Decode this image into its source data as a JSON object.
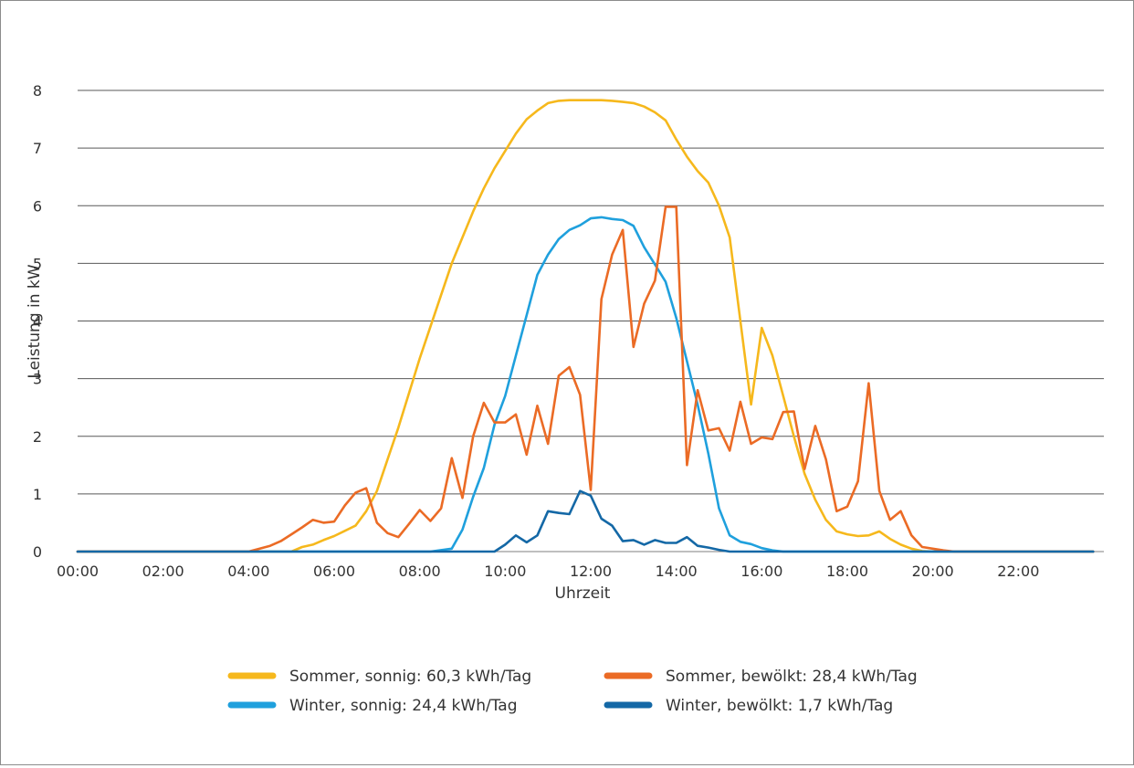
{
  "chart_data": {
    "type": "line",
    "title": "",
    "xlabel": "Uhrzeit",
    "ylabel": "Leistung in kW",
    "ylim": [
      0,
      8
    ],
    "yticks": [
      "0",
      "1",
      "2",
      "3",
      "4",
      "5",
      "6",
      "7",
      "8"
    ],
    "xticks": [
      "00:00",
      "02:00",
      "04:00",
      "06:00",
      "08:00",
      "10:00",
      "12:00",
      "14:00",
      "16:00",
      "18:00",
      "20:00",
      "22:00"
    ],
    "grid": "horizontal",
    "legend_position": "bottom",
    "series": [
      {
        "name": "Sommer, sonnig: 60,3 kWh/Tag",
        "color": "#f6b81c",
        "points": [
          [
            0,
            0
          ],
          [
            5,
            0
          ],
          [
            5.25,
            0.08
          ],
          [
            5.5,
            0.12
          ],
          [
            5.75,
            0.2
          ],
          [
            6,
            0.27
          ],
          [
            6.25,
            0.36
          ],
          [
            6.5,
            0.45
          ],
          [
            6.75,
            0.7
          ],
          [
            7,
            1.05
          ],
          [
            7.25,
            1.6
          ],
          [
            7.5,
            2.15
          ],
          [
            7.75,
            2.75
          ],
          [
            8,
            3.35
          ],
          [
            8.25,
            3.9
          ],
          [
            8.5,
            4.45
          ],
          [
            8.75,
            5.0
          ],
          [
            9,
            5.45
          ],
          [
            9.25,
            5.9
          ],
          [
            9.5,
            6.3
          ],
          [
            9.75,
            6.65
          ],
          [
            10,
            6.95
          ],
          [
            10.25,
            7.25
          ],
          [
            10.5,
            7.5
          ],
          [
            10.75,
            7.65
          ],
          [
            11,
            7.78
          ],
          [
            11.25,
            7.82
          ],
          [
            11.5,
            7.83
          ],
          [
            12,
            7.83
          ],
          [
            12.25,
            7.83
          ],
          [
            12.5,
            7.82
          ],
          [
            12.75,
            7.8
          ],
          [
            13,
            7.78
          ],
          [
            13.25,
            7.72
          ],
          [
            13.5,
            7.62
          ],
          [
            13.75,
            7.48
          ],
          [
            14,
            7.15
          ],
          [
            14.25,
            6.85
          ],
          [
            14.5,
            6.6
          ],
          [
            14.75,
            6.4
          ],
          [
            15,
            6.0
          ],
          [
            15.25,
            5.45
          ],
          [
            15.5,
            4.0
          ],
          [
            15.75,
            2.55
          ],
          [
            16,
            3.88
          ],
          [
            16.25,
            3.4
          ],
          [
            16.5,
            2.7
          ],
          [
            16.75,
            2.0
          ],
          [
            17,
            1.35
          ],
          [
            17.25,
            0.9
          ],
          [
            17.5,
            0.55
          ],
          [
            17.75,
            0.35
          ],
          [
            18,
            0.3
          ],
          [
            18.25,
            0.27
          ],
          [
            18.5,
            0.28
          ],
          [
            18.75,
            0.35
          ],
          [
            19,
            0.22
          ],
          [
            19.25,
            0.12
          ],
          [
            19.5,
            0.05
          ],
          [
            19.75,
            0.01
          ],
          [
            20,
            0
          ],
          [
            23.75,
            0
          ]
        ]
      },
      {
        "name": "Sommer, bewölkt: 28,4 kWh/Tag",
        "color": "#eb6b25",
        "points": [
          [
            0,
            0
          ],
          [
            4,
            0
          ],
          [
            4.5,
            0.1
          ],
          [
            4.75,
            0.18
          ],
          [
            5,
            0.3
          ],
          [
            5.25,
            0.42
          ],
          [
            5.5,
            0.55
          ],
          [
            5.75,
            0.5
          ],
          [
            6,
            0.52
          ],
          [
            6.25,
            0.8
          ],
          [
            6.5,
            1.02
          ],
          [
            6.75,
            1.1
          ],
          [
            7,
            0.5
          ],
          [
            7.25,
            0.32
          ],
          [
            7.5,
            0.25
          ],
          [
            7.75,
            0.48
          ],
          [
            8,
            0.72
          ],
          [
            8.25,
            0.53
          ],
          [
            8.5,
            0.75
          ],
          [
            8.75,
            1.62
          ],
          [
            9,
            0.93
          ],
          [
            9.25,
            2.0
          ],
          [
            9.5,
            2.58
          ],
          [
            9.75,
            2.24
          ],
          [
            10,
            2.24
          ],
          [
            10.25,
            2.38
          ],
          [
            10.5,
            1.68
          ],
          [
            10.75,
            2.53
          ],
          [
            11,
            1.87
          ],
          [
            11.25,
            3.05
          ],
          [
            11.5,
            3.2
          ],
          [
            11.75,
            2.72
          ],
          [
            12,
            1.07
          ],
          [
            12.25,
            4.38
          ],
          [
            12.5,
            5.15
          ],
          [
            12.75,
            5.58
          ],
          [
            13,
            3.55
          ],
          [
            13.25,
            4.3
          ],
          [
            13.5,
            4.7
          ],
          [
            13.75,
            5.98
          ],
          [
            14,
            5.98
          ],
          [
            14.25,
            1.5
          ],
          [
            14.5,
            2.8
          ],
          [
            14.75,
            2.1
          ],
          [
            15,
            2.14
          ],
          [
            15.25,
            1.75
          ],
          [
            15.5,
            2.6
          ],
          [
            15.75,
            1.87
          ],
          [
            16,
            1.98
          ],
          [
            16.25,
            1.95
          ],
          [
            16.5,
            2.42
          ],
          [
            16.75,
            2.43
          ],
          [
            17,
            1.43
          ],
          [
            17.25,
            2.18
          ],
          [
            17.5,
            1.6
          ],
          [
            17.75,
            0.7
          ],
          [
            18,
            0.78
          ],
          [
            18.25,
            1.22
          ],
          [
            18.5,
            2.92
          ],
          [
            18.75,
            1.05
          ],
          [
            19,
            0.55
          ],
          [
            19.25,
            0.7
          ],
          [
            19.5,
            0.28
          ],
          [
            19.75,
            0.08
          ],
          [
            20.25,
            0.02
          ],
          [
            20.5,
            0
          ],
          [
            23.75,
            0
          ]
        ]
      },
      {
        "name": "Winter, sonnig: 24,4 kWh/Tag",
        "color": "#1fa0dd",
        "points": [
          [
            0,
            0
          ],
          [
            8.25,
            0
          ],
          [
            8.75,
            0.05
          ],
          [
            9,
            0.38
          ],
          [
            9.25,
            0.95
          ],
          [
            9.5,
            1.45
          ],
          [
            9.75,
            2.2
          ],
          [
            10,
            2.7
          ],
          [
            10.25,
            3.4
          ],
          [
            10.5,
            4.1
          ],
          [
            10.75,
            4.8
          ],
          [
            11,
            5.15
          ],
          [
            11.25,
            5.42
          ],
          [
            11.5,
            5.58
          ],
          [
            11.75,
            5.66
          ],
          [
            12,
            5.78
          ],
          [
            12.25,
            5.8
          ],
          [
            12.5,
            5.77
          ],
          [
            12.75,
            5.75
          ],
          [
            13,
            5.65
          ],
          [
            13.25,
            5.28
          ],
          [
            13.5,
            4.98
          ],
          [
            13.75,
            4.68
          ],
          [
            14,
            4.05
          ],
          [
            14.25,
            3.3
          ],
          [
            14.5,
            2.55
          ],
          [
            14.75,
            1.7
          ],
          [
            15,
            0.75
          ],
          [
            15.25,
            0.28
          ],
          [
            15.5,
            0.17
          ],
          [
            15.75,
            0.13
          ],
          [
            16,
            0.06
          ],
          [
            16.25,
            0.02
          ],
          [
            16.5,
            0
          ],
          [
            23.75,
            0
          ]
        ]
      },
      {
        "name": "Winter, bewölkt: 1,7 kWh/Tag",
        "color": "#1468a6",
        "points": [
          [
            0,
            0
          ],
          [
            9.75,
            0
          ],
          [
            10,
            0.12
          ],
          [
            10.25,
            0.28
          ],
          [
            10.5,
            0.16
          ],
          [
            10.75,
            0.28
          ],
          [
            11,
            0.7
          ],
          [
            11.25,
            0.67
          ],
          [
            11.5,
            0.65
          ],
          [
            11.75,
            1.05
          ],
          [
            12,
            0.97
          ],
          [
            12.25,
            0.57
          ],
          [
            12.5,
            0.45
          ],
          [
            12.75,
            0.18
          ],
          [
            13,
            0.2
          ],
          [
            13.25,
            0.12
          ],
          [
            13.5,
            0.2
          ],
          [
            13.75,
            0.15
          ],
          [
            14,
            0.15
          ],
          [
            14.25,
            0.25
          ],
          [
            14.5,
            0.1
          ],
          [
            14.75,
            0.07
          ],
          [
            15,
            0.03
          ],
          [
            15.25,
            0
          ],
          [
            23.75,
            0
          ]
        ]
      }
    ]
  }
}
